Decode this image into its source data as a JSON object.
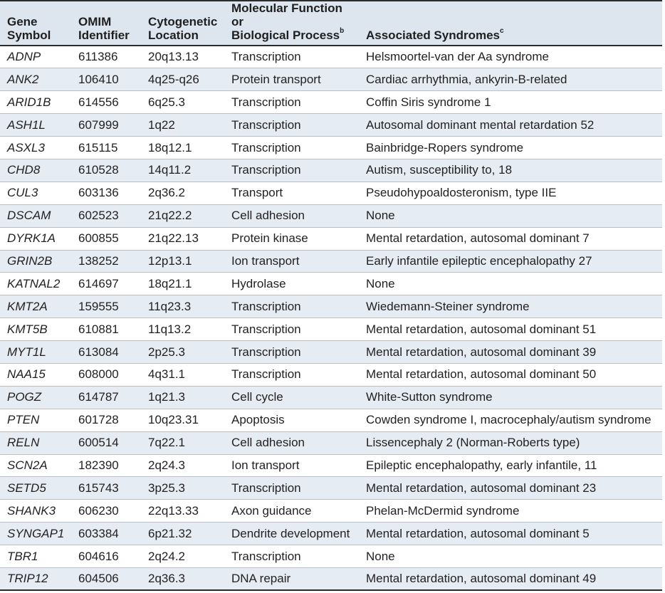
{
  "table": {
    "headers": {
      "gene": [
        "Gene",
        "Symbol"
      ],
      "omim": [
        "OMIM",
        "Identifier"
      ],
      "cyto": [
        "Cytogenetic",
        "Location"
      ],
      "function": [
        "Molecular Function or",
        "Biological Process",
        "b"
      ],
      "syndromes": [
        "Associated Syndromes",
        "c"
      ]
    },
    "rows": [
      [
        "ADNP",
        "611386",
        "20q13.13",
        "Transcription",
        "Helsmoortel-van der Aa syndrome"
      ],
      [
        "ANK2",
        "106410",
        "4q25-q26",
        "Protein transport",
        "Cardiac arrhythmia, ankyrin-B-related"
      ],
      [
        "ARID1B",
        "614556",
        "6q25.3",
        "Transcription",
        "Coffin Siris syndrome 1"
      ],
      [
        "ASH1L",
        "607999",
        "1q22",
        "Transcription",
        "Autosomal dominant mental retardation 52"
      ],
      [
        "ASXL3",
        "615115",
        "18q12.1",
        "Transcription",
        "Bainbridge-Ropers syndrome"
      ],
      [
        "CHD8",
        "610528",
        "14q11.2",
        "Transcription",
        "Autism, susceptibility to, 18"
      ],
      [
        "CUL3",
        "603136",
        "2q36.2",
        "Transport",
        "Pseudohypoaldosteronism, type IIE"
      ],
      [
        "DSCAM",
        "602523",
        "21q22.2",
        "Cell adhesion",
        "None"
      ],
      [
        "DYRK1A",
        "600855",
        "21q22.13",
        "Protein kinase",
        "Mental retardation, autosomal dominant 7"
      ],
      [
        "GRIN2B",
        "138252",
        "12p13.1",
        "Ion transport",
        "Early infantile epileptic encephalopathy 27"
      ],
      [
        "KATNAL2",
        "614697",
        "18q21.1",
        "Hydrolase",
        "None"
      ],
      [
        "KMT2A",
        "159555",
        "11q23.3",
        "Transcription",
        "Wiedemann-Steiner syndrome"
      ],
      [
        "KMT5B",
        "610881",
        "11q13.2",
        "Transcription",
        "Mental retardation, autosomal dominant 51"
      ],
      [
        "MYT1L",
        "613084",
        "2p25.3",
        "Transcription",
        "Mental retardation, autosomal dominant 39"
      ],
      [
        "NAA15",
        "608000",
        "4q31.1",
        "Transcription",
        "Mental retardation, autosomal dominant 50"
      ],
      [
        "POGZ",
        "614787",
        "1q21.3",
        "Cell cycle",
        "White-Sutton syndrome"
      ],
      [
        "PTEN",
        "601728",
        "10q23.31",
        "Apoptosis",
        "Cowden syndrome I, macrocephaly/autism syndrome"
      ],
      [
        "RELN",
        "600514",
        "7q22.1",
        "Cell adhesion",
        "Lissencephaly 2 (Norman-Roberts type)"
      ],
      [
        "SCN2A",
        "182390",
        "2q24.3",
        "Ion transport",
        "Epileptic encephalopathy, early infantile, 11"
      ],
      [
        "SETD5",
        "615743",
        "3p25.3",
        "Transcription",
        "Mental retardation, autosomal dominant 23"
      ],
      [
        "SHANK3",
        "606230",
        "22q13.33",
        "Axon guidance",
        "Phelan-McDermid syndrome"
      ],
      [
        "SYNGAP1",
        "603384",
        "6p21.32",
        "Dendrite development",
        "Mental retardation, autosomal dominant 5"
      ],
      [
        "TBR1",
        "604616",
        "2q24.2",
        "Transcription",
        "None"
      ],
      [
        "TRIP12",
        "604506",
        "2q36.3",
        "DNA repair",
        "Mental retardation, autosomal dominant 49"
      ]
    ]
  },
  "colors": {
    "header_bg": "#dde5ee",
    "stripe_bg": "#e6ecf3",
    "rule": "#2b2b2b",
    "row_divider": "#bfbfbf"
  }
}
